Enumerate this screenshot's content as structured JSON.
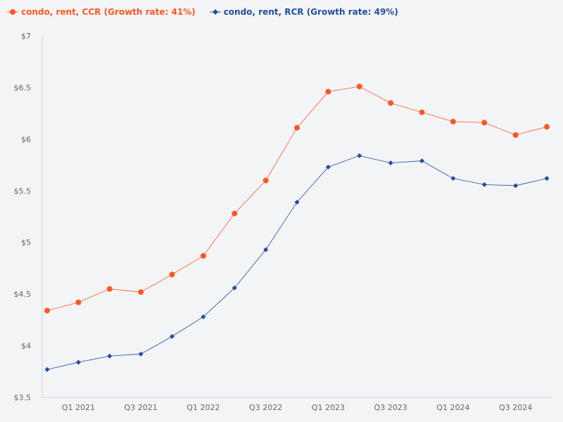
{
  "chart_data": {
    "type": "line",
    "title": "",
    "xlabel": "",
    "ylabel": "",
    "categories": [
      "",
      "Q1 2021",
      "",
      "Q3 2021",
      "",
      "Q1 2022",
      "",
      "Q3 2022",
      "",
      "Q1 2023",
      "",
      "Q3 2023",
      "",
      "Q1 2024",
      "",
      "Q3 2024",
      ""
    ],
    "ylim": [
      3.5,
      7
    ],
    "yticks": [
      3.5,
      4,
      4.5,
      5,
      5.5,
      6,
      6.5,
      7
    ],
    "ytick_labels": [
      "$3.5",
      "$4",
      "$4.5",
      "$5",
      "$5.5",
      "$6",
      "$6.5",
      "$7"
    ],
    "grid": false,
    "legend_position": "top-left",
    "series": [
      {
        "name": "condo, rent, CCR (Growth rate: 41%)",
        "color": "#ff5722",
        "marker": "circle",
        "values": [
          4.34,
          4.42,
          4.55,
          4.52,
          4.69,
          4.87,
          5.28,
          5.6,
          6.11,
          6.46,
          6.51,
          6.35,
          6.26,
          6.17,
          6.16,
          6.04,
          6.12
        ]
      },
      {
        "name": "condo, rent, RCR (Growth rate: 49%)",
        "color": "#1f4e9c",
        "marker": "diamond",
        "values": [
          3.77,
          3.84,
          3.9,
          3.92,
          4.09,
          4.28,
          4.56,
          4.93,
          5.39,
          5.73,
          5.84,
          5.77,
          5.79,
          5.62,
          5.56,
          5.55,
          5.62
        ]
      }
    ]
  }
}
